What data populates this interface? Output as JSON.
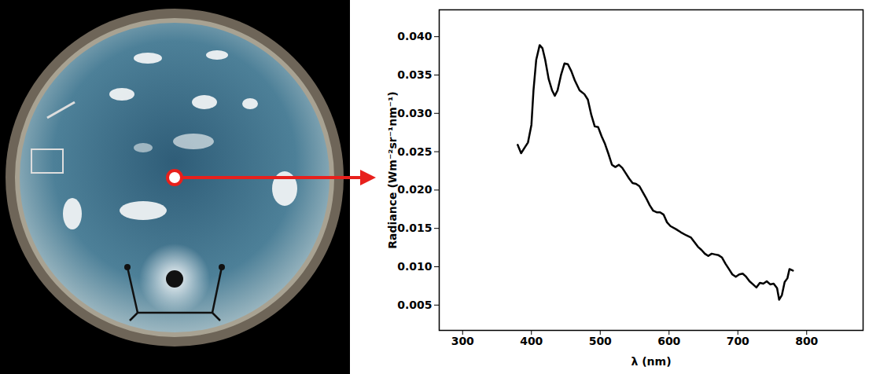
{
  "chart_data": {
    "type": "line",
    "x_label": "λ (nm)",
    "y_label": "Radiance (Wm⁻²sr⁻¹nm⁻¹)",
    "color": "#000000",
    "xlim": [
      266,
      882
    ],
    "xticks": [
      300,
      400,
      500,
      600,
      700,
      800
    ],
    "ylim": [
      0.0017,
      0.0435
    ],
    "yticks": [
      0.005,
      {
        "value": 0.01,
        "label": "0.010"
      },
      0.015,
      {
        "value": 0.02,
        "label": "0.020"
      },
      0.025,
      {
        "value": 0.03,
        "label": "0.030"
      },
      0.035,
      {
        "value": 0.04,
        "label": "0.040"
      }
    ],
    "grid": false,
    "x": [
      380,
      385,
      390,
      395,
      400,
      403,
      407,
      412,
      416,
      420,
      425,
      430,
      434,
      438,
      443,
      448,
      453,
      458,
      463,
      470,
      477,
      482,
      487,
      492,
      497,
      502,
      507,
      512,
      517,
      522,
      527,
      532,
      537,
      542,
      547,
      552,
      557,
      562,
      567,
      572,
      577,
      582,
      587,
      592,
      597,
      602,
      610,
      617,
      625,
      632,
      637,
      642,
      647,
      652,
      657,
      662,
      667,
      672,
      677,
      682,
      687,
      692,
      697,
      702,
      707,
      712,
      717,
      722,
      727,
      732,
      737,
      742,
      747,
      752,
      757,
      760,
      764,
      768,
      772,
      775,
      780
    ],
    "values": [
      0.0259,
      0.0248,
      0.0255,
      0.0262,
      0.0285,
      0.033,
      0.037,
      0.0389,
      0.0385,
      0.037,
      0.0345,
      0.033,
      0.0323,
      0.033,
      0.035,
      0.0365,
      0.0364,
      0.0355,
      0.0343,
      0.033,
      0.0325,
      0.0318,
      0.0298,
      0.0283,
      0.0282,
      0.027,
      0.026,
      0.0247,
      0.0233,
      0.023,
      0.0233,
      0.0229,
      0.0222,
      0.0215,
      0.0209,
      0.0208,
      0.0205,
      0.0197,
      0.0189,
      0.018,
      0.0173,
      0.0171,
      0.0171,
      0.0168,
      0.0158,
      0.0153,
      0.0149,
      0.0145,
      0.0141,
      0.0138,
      0.0132,
      0.0126,
      0.0122,
      0.0117,
      0.0114,
      0.0117,
      0.0116,
      0.0115,
      0.0112,
      0.0104,
      0.0097,
      0.009,
      0.0087,
      0.009,
      0.0091,
      0.0087,
      0.0081,
      0.0077,
      0.0073,
      0.0079,
      0.0078,
      0.0081,
      0.0077,
      0.0078,
      0.0072,
      0.0057,
      0.0063,
      0.008,
      0.0085,
      0.0097,
      0.0095
    ]
  }
}
